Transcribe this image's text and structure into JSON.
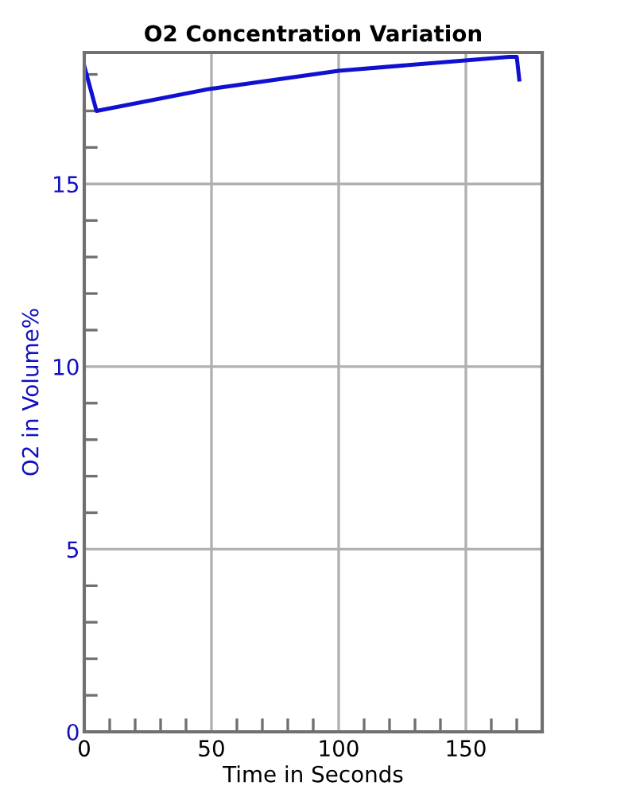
{
  "chart_data": {
    "type": "line",
    "title": "O2 Concentration Variation",
    "xlabel": "Time in Seconds",
    "ylabel": "O2 in Volume%",
    "x": [
      0,
      4.8,
      49,
      100,
      167,
      170,
      171
    ],
    "series": [
      {
        "color": "#1010d0",
        "values": [
          18.23,
          17.0,
          17.6,
          18.1,
          18.48,
          18.48,
          17.86
        ]
      }
    ],
    "xlim": [
      0,
      180
    ],
    "xticks": [
      0,
      50,
      100,
      150
    ],
    "ylim": [
      0,
      18.6
    ],
    "yticks": [
      0,
      5,
      10,
      15
    ],
    "grid": true,
    "marker": "none",
    "line_style": "solid",
    "legend": false
  }
}
